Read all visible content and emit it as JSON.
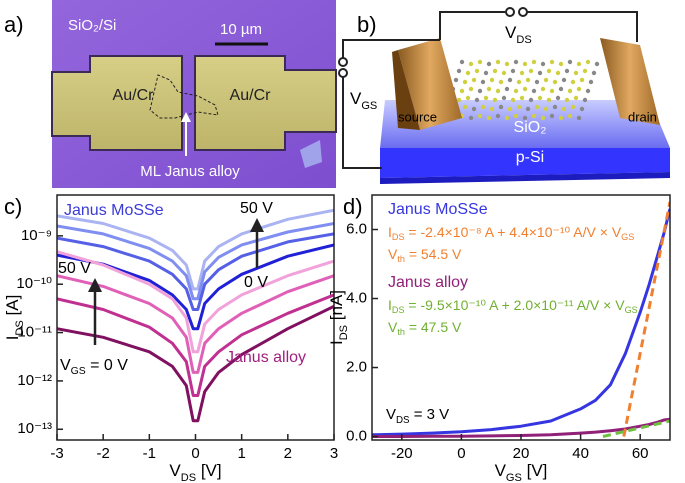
{
  "panel_labels": [
    "a)",
    "b)",
    "c)",
    "d)"
  ],
  "micrograph": {
    "substrate": "SiO₂/Si",
    "scale_bar": "10 µm",
    "electrodes": [
      "Au/Cr",
      "Au/Cr"
    ],
    "flake": "ML Janus alloy"
  },
  "schematic": {
    "vds": [
      "V",
      "DS"
    ],
    "vgs": [
      "V",
      "GS"
    ],
    "source": "source",
    "drain": "drain",
    "oxide": "SiO₂",
    "substrate": "p-Si"
  },
  "chart_data": [
    {
      "type": "line",
      "log_y": true,
      "xlabel": [
        "V",
        "DS",
        " [V]"
      ],
      "ylabel": [
        "I",
        "DS",
        " [A]"
      ],
      "x": [
        -3,
        -2,
        -1,
        -0.5,
        -0.2,
        -0.05,
        0.05,
        0.2,
        0.5,
        1,
        2,
        3
      ],
      "xlim": [
        -3,
        3
      ],
      "xticks": [
        -3,
        -2,
        -1,
        0,
        1,
        2,
        3
      ],
      "ylim": [
        6e-14,
        7e-09
      ],
      "yticks": [
        {
          "value": 1e-09,
          "label": "10⁻⁹"
        },
        {
          "value": 1e-10,
          "label": "10⁻¹⁰"
        },
        {
          "value": 1e-11,
          "label": "10⁻¹¹"
        },
        {
          "value": 1e-12,
          "label": "10⁻¹²"
        },
        {
          "value": 1e-13,
          "label": "10⁻¹³"
        }
      ],
      "series": [
        {
          "color": "#aab4f2",
          "values": [
            2.6e-09,
            1.8e-09,
            9e-10,
            5e-10,
            2.5e-10,
            8e-11,
            8e-11,
            3e-10,
            6e-10,
            1.1e-09,
            2.2e-09,
            3.4e-09
          ]
        },
        {
          "color": "#7f8ef0",
          "values": [
            1.6e-09,
            1.1e-09,
            5.5e-10,
            3e-10,
            1.5e-10,
            5e-11,
            5e-11,
            1.8e-10,
            3.6e-10,
            6.5e-10,
            1.2e-09,
            1.8e-09
          ]
        },
        {
          "color": "#5560e6",
          "values": [
            9e-10,
            6e-10,
            3e-10,
            1.6e-10,
            8e-11,
            3e-11,
            3e-11,
            1e-10,
            2e-10,
            3.8e-10,
            7.5e-10,
            1.1e-09
          ]
        },
        {
          "color": "#2020d6",
          "values": [
            4e-10,
            2.6e-10,
            1.2e-10,
            6e-11,
            3e-11,
            1.2e-11,
            1.2e-11,
            4e-11,
            8e-11,
            1.6e-10,
            3.8e-10,
            6.5e-10
          ]
        },
        {
          "color": "#f2a2da",
          "values": [
            4.7e-10,
            2.5e-10,
            1e-10,
            5e-11,
            2e-11,
            4e-12,
            4e-12,
            1.5e-11,
            3e-11,
            6e-11,
            1.5e-10,
            3e-10
          ]
        },
        {
          "color": "#e060b8",
          "values": [
            1.5e-10,
            9e-11,
            4e-11,
            2e-11,
            8e-12,
            1.5e-12,
            1.5e-12,
            6e-12,
            1.2e-11,
            2.5e-11,
            7e-11,
            1.5e-10
          ]
        },
        {
          "color": "#c03090",
          "values": [
            5e-11,
            3e-11,
            1.3e-11,
            6e-12,
            2.5e-12,
            5e-13,
            5e-13,
            2e-12,
            4e-12,
            9e-12,
            2.5e-11,
            6e-11
          ]
        },
        {
          "color": "#801060",
          "values": [
            1.2e-11,
            8e-12,
            4e-12,
            2e-12,
            8e-13,
            1.5e-13,
            1.5e-13,
            6e-13,
            1.5e-12,
            3.5e-12,
            1.2e-11,
            3.5e-11
          ]
        }
      ],
      "annotations": {
        "material_top": "Janus MoSSe",
        "material_bottom": "Janus alloy",
        "blue_high": "50 V",
        "blue_low": "0 V",
        "pink_high": "50 V",
        "pink_low": [
          "V",
          "GS",
          " = 0 V"
        ]
      }
    },
    {
      "type": "line",
      "log_y": false,
      "xlabel": [
        "V",
        "GS",
        " [V]"
      ],
      "ylabel": [
        "I",
        "DS",
        " [nA]"
      ],
      "xlim": [
        -30,
        70
      ],
      "xticks": [
        -20,
        0,
        20,
        40,
        60
      ],
      "ylim": [
        -0.1,
        7
      ],
      "yticks": [
        {
          "value": 0,
          "label": "0.0"
        },
        {
          "value": 2,
          "label": "2.0"
        },
        {
          "value": 4,
          "label": "4.0"
        },
        {
          "value": 6,
          "label": "6.0"
        }
      ],
      "series": [
        {
          "color": "#3535e2",
          "dashed": false,
          "x": [
            -30,
            -20,
            -10,
            0,
            10,
            20,
            30,
            40,
            45,
            50,
            55,
            60,
            63,
            66,
            68,
            70
          ],
          "values": [
            0.05,
            0.07,
            0.1,
            0.14,
            0.2,
            0.3,
            0.45,
            0.8,
            1.05,
            1.5,
            2.4,
            3.6,
            4.4,
            5.3,
            5.9,
            6.6
          ]
        },
        {
          "color": "#902078",
          "dashed": false,
          "x": [
            -30,
            -20,
            -10,
            0,
            10,
            20,
            30,
            40,
            45,
            50,
            55,
            60,
            63,
            66,
            68,
            70
          ],
          "values": [
            0,
            0,
            0.01,
            0.01,
            0.02,
            0.03,
            0.05,
            0.1,
            0.13,
            0.17,
            0.22,
            0.3,
            0.35,
            0.42,
            0.48,
            0.5
          ]
        },
        {
          "color": "#f08030",
          "dashed": true,
          "x": [
            54.5,
            70
          ],
          "values": [
            0,
            6.8
          ]
        },
        {
          "color": "#70c040",
          "dashed": true,
          "x": [
            47.5,
            70
          ],
          "values": [
            0,
            0.45
          ]
        }
      ],
      "annotations": {
        "mosse": "Janus MoSSe",
        "mosse_fit": [
          "I",
          "DS",
          " = -2.4×10⁻⁸ A + 4.4×10⁻¹⁰ ",
          "A/V",
          " × V",
          "GS"
        ],
        "mosse_vth": [
          "V",
          "th",
          " = 54.5 V"
        ],
        "alloy": "Janus alloy",
        "alloy_fit": [
          "I",
          "DS",
          " = -9.5×10⁻¹⁰ A + 2.0×10⁻¹¹ ",
          "A/V",
          " × V",
          "GS"
        ],
        "alloy_vth": [
          "V",
          "th",
          " = 47.5 V"
        ],
        "vds": [
          "V",
          "DS",
          " = 3 V"
        ]
      }
    }
  ]
}
